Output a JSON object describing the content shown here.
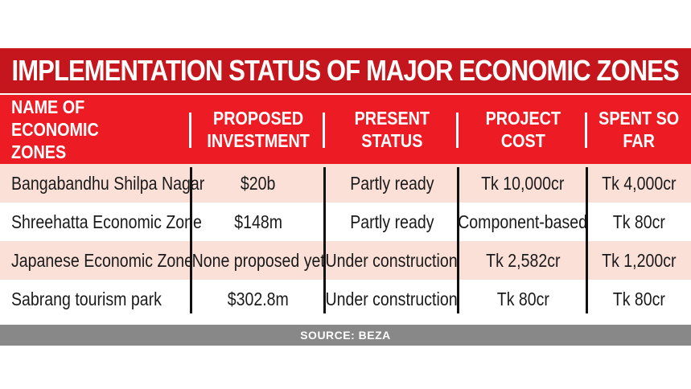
{
  "title": "IMPLEMENTATION STATUS OF MAJOR ECONOMIC ZONES",
  "columns": [
    "NAME OF ECONOMIC\nZONES",
    "PROPOSED\nINVESTMENT",
    "PRESENT\nSTATUS",
    "PROJECT\nCOST",
    "SPENT SO\nFAR"
  ],
  "rows": [
    [
      "Bangabandhu Shilpa Nagar",
      "$20b",
      "Partly ready",
      "Tk 10,000cr",
      "Tk 4,000cr"
    ],
    [
      "Shreehatta Economic Zone",
      "$148m",
      "Partly ready",
      "Component-based",
      "Tk 80cr"
    ],
    [
      "Japanese Economic Zone",
      "None proposed yet",
      "Under construction",
      "Tk 2,582cr",
      "Tk 1,200cr"
    ],
    [
      "Sabrang tourism park",
      "$302.8m",
      "Under construction",
      "Tk 80cr",
      "Tk 80cr"
    ]
  ],
  "source": "SOURCE: BEZA",
  "colors": {
    "title_bg": "#c4161c",
    "header_bg": "#ed1c24",
    "row_alt_bg": "#fbe0d8",
    "source_bg": "#888888"
  }
}
